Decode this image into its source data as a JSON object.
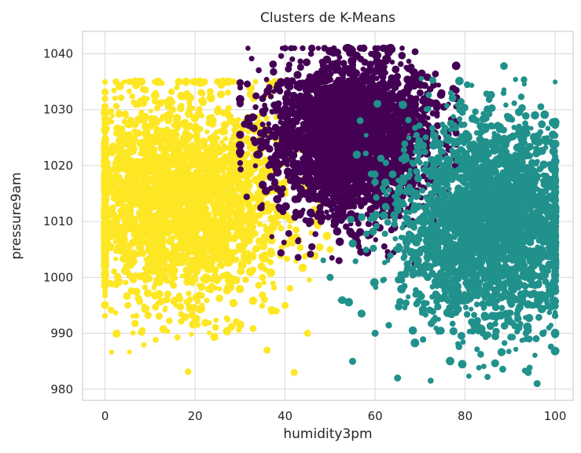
{
  "chart_data": {
    "type": "scatter",
    "title": "Clusters de K-Means",
    "xlabel": "humidity3pm",
    "ylabel": "pressure9am",
    "xlim": [
      -5,
      104
    ],
    "ylim": [
      978,
      1044
    ],
    "x_ticks": [
      0,
      20,
      40,
      60,
      80,
      100
    ],
    "y_ticks": [
      980,
      990,
      1000,
      1010,
      1020,
      1030,
      1040
    ],
    "grid": true,
    "legend": "none",
    "colors": {
      "cluster_0": "#440154",
      "cluster_1": "#21918c",
      "cluster_2": "#fde725"
    },
    "series": [
      {
        "color": "#fde725",
        "region": {
          "x_center": 16,
          "x_spread": 12,
          "x_min": 0,
          "x_max": 52,
          "y_center": 1014,
          "y_spread": 9,
          "y_min": 983,
          "y_max": 1035
        },
        "x": [
          2,
          5,
          10,
          15,
          20,
          25,
          30,
          35,
          40,
          45,
          50,
          33,
          38,
          36,
          42
        ],
        "y": [
          1015,
          1022,
          1008,
          1030,
          1012,
          1018,
          1005,
          1000,
          995,
          990,
          1005,
          1032,
          994,
          987,
          983
        ]
      },
      {
        "color": "#440154",
        "region": {
          "x_center": 55,
          "x_spread": 9,
          "x_min": 30,
          "x_max": 78,
          "y_center": 1025,
          "y_spread": 7,
          "y_min": 995,
          "y_max": 1041
        },
        "x": [
          40,
          45,
          50,
          55,
          60,
          65,
          70,
          48,
          52,
          58,
          62,
          35
        ],
        "y": [
          1030,
          1035,
          1025,
          1038,
          1020,
          1028,
          1033,
          1010,
          1003,
          1015,
          1041,
          1032
        ]
      },
      {
        "color": "#21918c",
        "region": {
          "x_center": 85,
          "x_spread": 10,
          "x_min": 40,
          "x_max": 100,
          "y_center": 1010,
          "y_spread": 9,
          "y_min": 980,
          "y_max": 1038
        },
        "x": [
          70,
          75,
          80,
          85,
          90,
          95,
          100,
          60,
          55,
          65,
          50,
          96,
          94
        ],
        "y": [
          1010,
          1020,
          1000,
          1015,
          1025,
          995,
          1005,
          990,
          985,
          982,
          1000,
          981,
          983
        ]
      }
    ]
  }
}
